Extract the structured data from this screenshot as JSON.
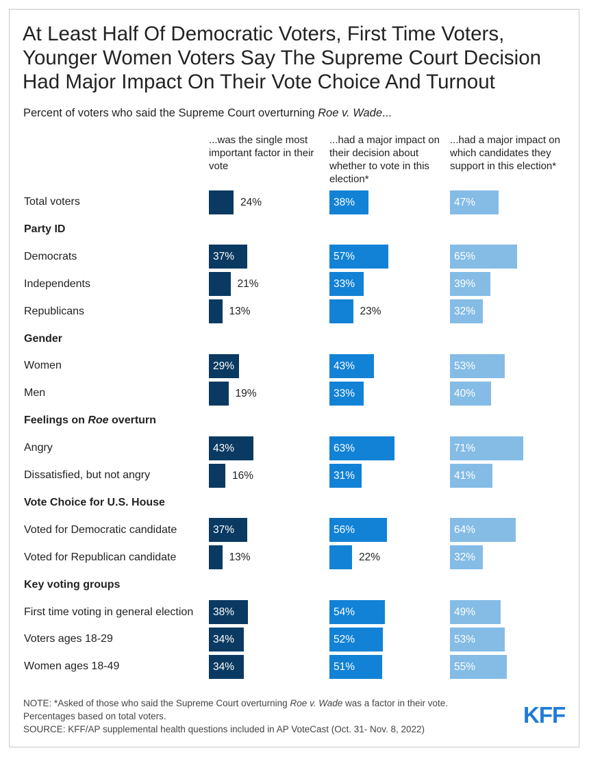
{
  "title": "At Least Half Of Democratic Voters, First Time Voters, Younger Women Voters Say The Supreme Court Decision Had Major Impact On Their Vote Choice And Turnout",
  "subtitle_prefix": "Percent of voters who said the Supreme Court overturning ",
  "subtitle_italic": "Roe v. Wade",
  "subtitle_suffix": "...",
  "note_prefix": "NOTE: *Asked of those who said the Supreme Court overturning ",
  "note_italic": "Roe v. Wade",
  "note_suffix": " was a factor in their vote.",
  "note_line2": "Percentages based on total voters.",
  "source": "SOURCE: KFF/AP supplemental health questions included in AP VoteCast (Oct. 31- Nov. 8, 2022)",
  "logo": "KFF",
  "colors": {
    "series1": "#0a3a62",
    "series2": "#1282d6",
    "series3": "#84bce6"
  },
  "chart_data": {
    "type": "bar",
    "orientation": "horizontal",
    "series": [
      {
        "name": "...was the single most important factor in their vote",
        "values": [
          24,
          37,
          21,
          13,
          29,
          19,
          43,
          16,
          37,
          13,
          38,
          34,
          34
        ]
      },
      {
        "name": "...had a major impact on their decision about whether to vote in this election*",
        "values": [
          38,
          57,
          33,
          23,
          43,
          33,
          63,
          31,
          56,
          22,
          54,
          52,
          51
        ]
      },
      {
        "name": "...had a major impact on which candidates they support in this election*",
        "values": [
          47,
          65,
          39,
          32,
          53,
          40,
          71,
          41,
          64,
          32,
          49,
          53,
          55
        ]
      }
    ],
    "rows": [
      {
        "label": "Total voters"
      },
      {
        "group": "Party ID"
      },
      {
        "label": "Democrats"
      },
      {
        "label": "Independents"
      },
      {
        "label": "Republicans"
      },
      {
        "group": "Gender"
      },
      {
        "label": "Women"
      },
      {
        "label": "Men"
      },
      {
        "group_prefix": "Feelings on ",
        "group_italic": "Roe",
        "group_suffix": " overturn"
      },
      {
        "label": "Angry"
      },
      {
        "label": "Dissatisfied, but not angry"
      },
      {
        "group": "Vote Choice for U.S. House"
      },
      {
        "label": "Voted for Democratic candidate"
      },
      {
        "label": "Voted for Republican candidate"
      },
      {
        "group": "Key voting groups"
      },
      {
        "label": "First time voting in general election"
      },
      {
        "label": "Voters ages 18-29"
      },
      {
        "label": "Women ages 18-49"
      }
    ],
    "value_suffix": "%"
  }
}
